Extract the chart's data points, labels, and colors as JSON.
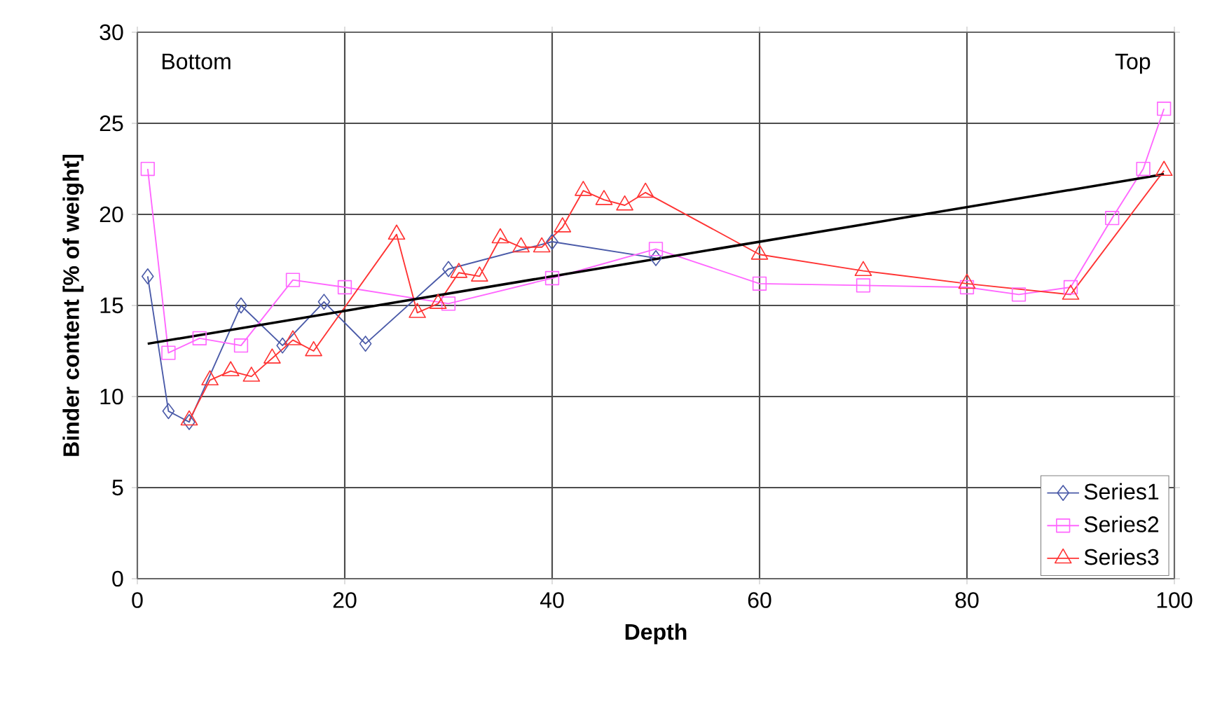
{
  "chart_data": {
    "type": "line",
    "xlabel": "Depth",
    "ylabel": "Binder content [% of weight]",
    "annotations": [
      "Bottom",
      "Top"
    ],
    "xlim": [
      0,
      100
    ],
    "xticks": [
      0,
      20,
      40,
      60,
      80,
      100
    ],
    "ylim": [
      0,
      30
    ],
    "yticks": [
      0,
      5,
      10,
      15,
      20,
      25,
      30
    ],
    "grid": true,
    "legend": "bottom right",
    "series": [
      {
        "name": "Series1",
        "color": "#4a5aa8",
        "marker": "diamond",
        "x": [
          1,
          3,
          5,
          10,
          14,
          18,
          22,
          30,
          40,
          50
        ],
        "values": [
          16.6,
          9.2,
          8.6,
          15.0,
          12.8,
          15.2,
          12.9,
          17.0,
          18.5,
          17.6
        ]
      },
      {
        "name": "Series2",
        "color": "#ff66ff",
        "marker": "square",
        "x": [
          1,
          3,
          6,
          10,
          15,
          20,
          30,
          40,
          50,
          60,
          70,
          80,
          85,
          90,
          94,
          97,
          99
        ],
        "values": [
          22.5,
          12.4,
          13.2,
          12.8,
          16.4,
          16.0,
          15.1,
          16.5,
          18.1,
          16.2,
          16.1,
          16.0,
          15.6,
          16.0,
          19.8,
          22.5,
          25.8
        ]
      },
      {
        "name": "Series3",
        "color": "#ff3333",
        "marker": "triangle",
        "x": [
          5,
          7,
          9,
          11,
          13,
          15,
          17,
          25,
          27,
          29,
          31,
          33,
          35,
          37,
          39,
          41,
          43,
          45,
          47,
          49,
          60,
          70,
          80,
          90,
          99
        ],
        "values": [
          8.7,
          10.9,
          11.4,
          11.1,
          12.1,
          13.1,
          12.5,
          18.9,
          14.6,
          15.1,
          16.8,
          16.6,
          18.7,
          18.2,
          18.2,
          19.3,
          21.3,
          20.8,
          20.5,
          21.2,
          17.8,
          16.9,
          16.2,
          15.6,
          22.4
        ]
      },
      {
        "color": "#000000",
        "marker": "none",
        "x": [
          1,
          99
        ],
        "values": [
          12.9,
          22.2
        ]
      }
    ]
  }
}
